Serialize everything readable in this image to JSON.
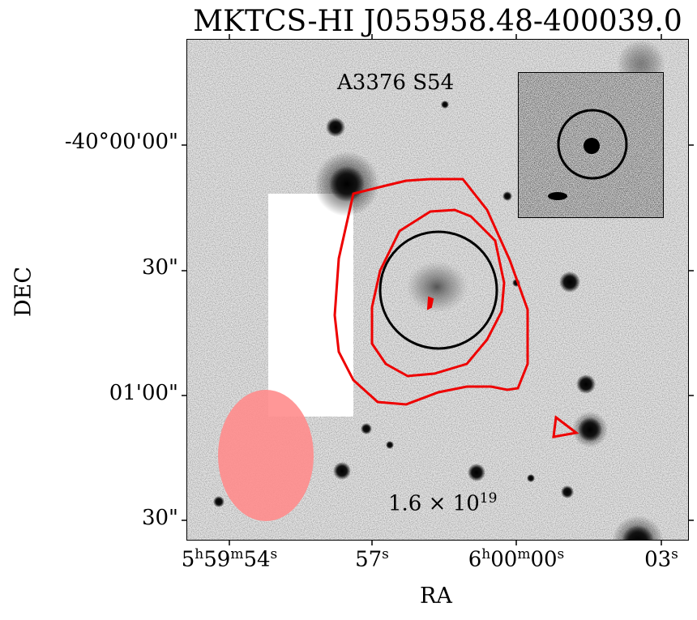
{
  "title": "MKTCS-HI J055958.48-400039.0",
  "field_label": "A3376 S54",
  "column_density_label": "1.6 × 10",
  "column_density_exponent": "19",
  "ylabel": "DEC",
  "xlabel": "RA",
  "yticks": [
    "-40°00'00\"",
    "30\"",
    "01'00\"",
    "30\""
  ],
  "xticks": [
    {
      "h": "5",
      "hs": "h",
      "m": "59",
      "ms": "m",
      "s": "54",
      "ss": "s"
    },
    {
      "h": "",
      "hs": "",
      "m": "",
      "ms": "",
      "s": "57",
      "ss": "s"
    },
    {
      "h": "6",
      "hs": "h",
      "m": "00",
      "ms": "m",
      "s": "00",
      "ss": "s"
    },
    {
      "h": "",
      "hs": "",
      "m": "",
      "ms": "",
      "s": "03",
      "ss": "s"
    }
  ],
  "colors": {
    "contour": "#ee0000",
    "beam": "#ff8c8c",
    "aperture": "#000000",
    "background": "#bfbfbf"
  }
}
